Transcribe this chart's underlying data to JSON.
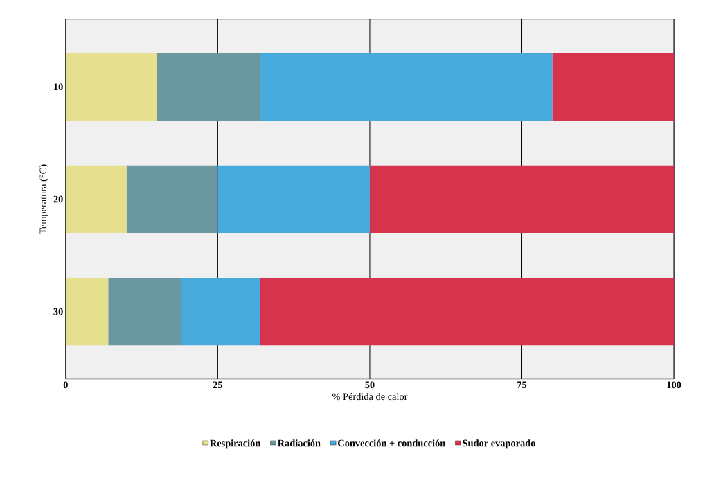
{
  "chart_data": {
    "type": "bar",
    "orientation": "horizontal",
    "stacked": true,
    "xlabel": "% Pérdida de calor",
    "ylabel": "Temperatura (°C)",
    "categories": [
      "10",
      "20",
      "30"
    ],
    "series": [
      {
        "name": "Respiración",
        "color": "#e6df8e",
        "values": [
          15,
          10,
          7
        ]
      },
      {
        "name": "Radiación",
        "color": "#6b97a0",
        "values": [
          17,
          15,
          12
        ]
      },
      {
        "name": "Convección + conducción",
        "color": "#48a9dc",
        "values": [
          48,
          25,
          13
        ]
      },
      {
        "name": "Sudor evaporado",
        "color": "#d6344c",
        "values": [
          20,
          50,
          68
        ]
      }
    ],
    "xlim": [
      0,
      100
    ],
    "xticks": [
      0,
      25,
      50,
      75,
      100
    ],
    "grid": "x",
    "legend": "bottom"
  }
}
